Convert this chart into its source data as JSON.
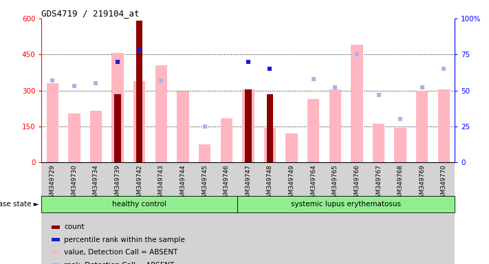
{
  "title": "GDS4719 / 219104_at",
  "samples": [
    "GSM349729",
    "GSM349730",
    "GSM349734",
    "GSM349739",
    "GSM349742",
    "GSM349743",
    "GSM349744",
    "GSM349745",
    "GSM349746",
    "GSM349747",
    "GSM349748",
    "GSM349749",
    "GSM349764",
    "GSM349765",
    "GSM349766",
    "GSM349767",
    "GSM349768",
    "GSM349769",
    "GSM349770"
  ],
  "n_healthy": 9,
  "n_sle": 10,
  "count_values": [
    null,
    null,
    null,
    285,
    590,
    null,
    null,
    null,
    null,
    305,
    285,
    null,
    null,
    null,
    null,
    null,
    null,
    null,
    null
  ],
  "percentile_rank_values": [
    null,
    null,
    null,
    70,
    78,
    null,
    null,
    null,
    null,
    70,
    65,
    null,
    null,
    null,
    null,
    null,
    null,
    null,
    null
  ],
  "value_absent": [
    330,
    205,
    215,
    455,
    340,
    405,
    295,
    75,
    185,
    305,
    145,
    120,
    265,
    305,
    490,
    160,
    145,
    300,
    305
  ],
  "rank_absent": [
    57,
    53,
    55,
    null,
    null,
    57,
    null,
    25,
    null,
    null,
    null,
    null,
    58,
    52,
    75,
    47,
    30,
    52,
    65
  ],
  "ylim_left": [
    0,
    600
  ],
  "ylim_right": [
    0,
    100
  ],
  "yticks_left": [
    0,
    150,
    300,
    450,
    600
  ],
  "yticks_right": [
    0,
    25,
    50,
    75,
    100
  ],
  "color_count": "#8B0000",
  "color_percentile": "#1C1CD4",
  "color_value_absent": "#FFB6C1",
  "color_rank_absent": "#A8B4E8",
  "bg_color": "#FFFFFF",
  "healthy_label": "healthy control",
  "sle_label": "systemic lupus erythematosus",
  "disease_state_label": "disease state",
  "group_color": "#90EE90",
  "legend_items": [
    "count",
    "percentile rank within the sample",
    "value, Detection Call = ABSENT",
    "rank, Detection Call = ABSENT"
  ]
}
